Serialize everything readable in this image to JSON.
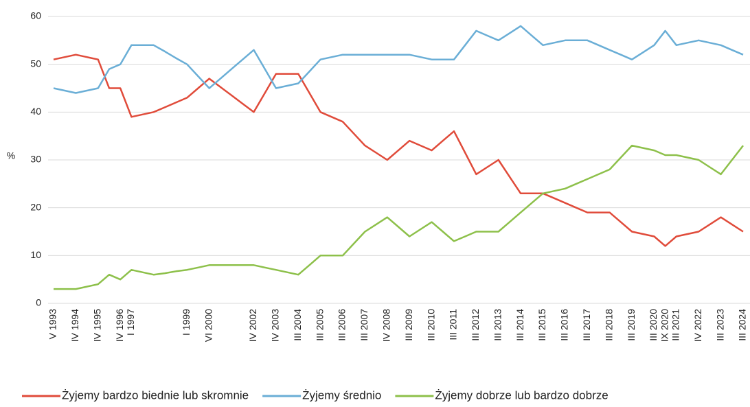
{
  "chart_data": {
    "type": "line",
    "y_label": "%",
    "categories": [
      "V 1993",
      null,
      "IV 1994",
      null,
      "IV 1995",
      null,
      "IV 1996",
      "I 1997",
      null,
      null,
      null,
      null,
      "I 1999",
      null,
      "VI 2000",
      null,
      null,
      null,
      "IV 2002",
      null,
      "IV 2003",
      null,
      "III 2004",
      null,
      "III 2005",
      null,
      "III 2006",
      null,
      "III 2007",
      null,
      "IV 2008",
      null,
      "III 2009",
      null,
      "III 2010",
      null,
      "III 2011",
      null,
      "III 2012",
      null,
      "III 2013",
      null,
      "III 2014",
      null,
      "III 2015",
      null,
      "III 2016",
      null,
      "III 2017",
      null,
      "III 2018",
      null,
      "III 2019",
      null,
      "III 2020",
      "IX 2020",
      "III 2021",
      null,
      "IV 2022",
      null,
      "III 2023",
      null,
      "III 2024"
    ],
    "series": [
      {
        "name": "Żyjemy bardzo biednie lub skromnie",
        "color": "#e04b3a",
        "values": [
          51,
          51.5,
          52,
          51.5,
          51,
          45,
          45,
          39,
          39.5,
          40,
          41,
          42,
          43,
          45,
          47,
          45.25,
          43.5,
          41.75,
          40,
          44,
          48,
          48,
          48,
          44,
          40,
          39,
          38,
          35.5,
          33,
          31.5,
          30,
          32,
          34,
          33,
          32,
          34,
          36,
          31.5,
          27,
          28.5,
          30,
          26.5,
          23,
          23,
          23,
          22,
          21,
          20,
          19,
          19,
          19,
          17,
          15,
          14.5,
          14,
          12,
          14,
          14.5,
          15,
          16.5,
          18,
          16.5,
          15
        ]
      },
      {
        "name": "Żyjemy średnio",
        "color": "#6aaed6",
        "values": [
          45,
          44.5,
          44,
          44.5,
          45,
          49,
          50,
          54,
          54,
          54,
          52.7,
          51.3,
          50,
          47.5,
          45,
          47,
          49,
          51,
          53,
          49,
          45,
          45.5,
          46,
          48.5,
          51,
          51.5,
          52,
          52,
          52,
          52,
          52,
          52,
          52,
          51.5,
          51,
          51,
          51,
          54,
          57,
          56,
          55,
          56.5,
          58,
          56,
          54,
          54.5,
          55,
          55,
          55,
          54,
          53,
          52,
          51,
          52.5,
          54,
          57,
          54,
          54.5,
          55,
          54.5,
          54,
          53,
          52
        ]
      },
      {
        "name": "Żyjemy dobrze lub bardzo dobrze",
        "color": "#8dc04a",
        "values": [
          3,
          3,
          3,
          3.5,
          4,
          6,
          5,
          7,
          6.5,
          6,
          6.3,
          6.7,
          7,
          7.5,
          8,
          8,
          8,
          8,
          8,
          7.5,
          7,
          6.5,
          6,
          8,
          10,
          10,
          10,
          12.5,
          15,
          16.5,
          18,
          16,
          14,
          15.5,
          17,
          15,
          13,
          14,
          15,
          15,
          15,
          17,
          19,
          21,
          23,
          23.5,
          24,
          25,
          26,
          27,
          28,
          30.5,
          33,
          32.5,
          32,
          31,
          31,
          30.5,
          30,
          28.5,
          27,
          30,
          33
        ]
      }
    ],
    "ylim": [
      0,
      60
    ],
    "yticks": [
      0,
      10,
      20,
      30,
      40,
      50,
      60
    ],
    "grid": true,
    "legend": "bottom"
  }
}
